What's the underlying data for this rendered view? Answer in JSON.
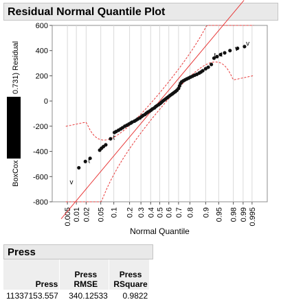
{
  "plot_panel": {
    "title": "Residual Normal Quantile Plot"
  },
  "press_panel": {
    "title": "Press",
    "columns": [
      "Press",
      "Press RMSE",
      "Press RSquare"
    ],
    "column_lines": [
      [
        "",
        "Press"
      ],
      [
        "",
        "Press RMSE"
      ],
      [
        "Press",
        "RSquare"
      ]
    ],
    "rows": [
      [
        "11337153.557",
        "340.12533",
        "0.9822"
      ]
    ]
  },
  "chart_data": {
    "type": "scatter",
    "title": "",
    "xlabel": "Normal Quantile",
    "ylabel_part1": "BoxCox",
    "ylabel_redacted": true,
    "ylabel_part2": "0.731) Residual",
    "x_scale": "probit",
    "xticks": [
      "0.005",
      "0.01",
      "0.02",
      "0.05",
      "0.1",
      "0.2",
      "0.3",
      "0.4",
      "0.5",
      "0.6",
      "0.7",
      "0.8",
      "0.9",
      "0.95",
      "0.98",
      "0.99",
      "0.995"
    ],
    "yticks": [
      600,
      400,
      200,
      0,
      -200,
      -400,
      -600,
      -800
    ],
    "ylim": [
      -800,
      600
    ],
    "grid": true,
    "fit_line": {
      "slope": 340,
      "intercept": 0,
      "color": "#e83a3a"
    },
    "confidence_band": {
      "color": "#e83a3a",
      "style": "dashed"
    },
    "point_color": "#111111",
    "label_color": "#000000",
    "labels": [
      {
        "text": "v",
        "quantile": 0.006,
        "y": -640
      },
      {
        "text": "t",
        "quantile": 0.023,
        "y": -470
      },
      {
        "text": "t",
        "quantile": 0.096,
        "y": -285
      },
      {
        "text": "t",
        "quantile": 0.935,
        "y": 365
      },
      {
        "text": "t",
        "quantile": 0.955,
        "y": 375
      },
      {
        "text": "v",
        "quantile": 0.982,
        "y": 420
      },
      {
        "text": "v",
        "quantile": 0.992,
        "y": 460
      }
    ],
    "points": [
      [
        0.012,
        -530
      ],
      [
        0.019,
        -480
      ],
      [
        0.026,
        -455
      ],
      [
        0.047,
        -390
      ],
      [
        0.052,
        -375
      ],
      [
        0.058,
        -362
      ],
      [
        0.066,
        -348
      ],
      [
        0.085,
        -300
      ],
      [
        0.103,
        -250
      ],
      [
        0.112,
        -242
      ],
      [
        0.125,
        -232
      ],
      [
        0.138,
        -222
      ],
      [
        0.15,
        -212
      ],
      [
        0.165,
        -200
      ],
      [
        0.18,
        -192
      ],
      [
        0.195,
        -183
      ],
      [
        0.21,
        -175
      ],
      [
        0.22,
        -168
      ],
      [
        0.24,
        -160
      ],
      [
        0.255,
        -152
      ],
      [
        0.27,
        -143
      ],
      [
        0.29,
        -135
      ],
      [
        0.305,
        -124
      ],
      [
        0.32,
        -115
      ],
      [
        0.34,
        -107
      ],
      [
        0.355,
        -97
      ],
      [
        0.37,
        -88
      ],
      [
        0.39,
        -80
      ],
      [
        0.405,
        -72
      ],
      [
        0.42,
        -63
      ],
      [
        0.44,
        -55
      ],
      [
        0.455,
        -45
      ],
      [
        0.47,
        -37
      ],
      [
        0.49,
        -28
      ],
      [
        0.505,
        -20
      ],
      [
        0.52,
        -10
      ],
      [
        0.535,
        0
      ],
      [
        0.55,
        8
      ],
      [
        0.565,
        16
      ],
      [
        0.58,
        25
      ],
      [
        0.595,
        33
      ],
      [
        0.61,
        42
      ],
      [
        0.625,
        50
      ],
      [
        0.64,
        58
      ],
      [
        0.655,
        67
      ],
      [
        0.67,
        75
      ],
      [
        0.685,
        86
      ],
      [
        0.7,
        100
      ],
      [
        0.71,
        120
      ],
      [
        0.72,
        140
      ],
      [
        0.73,
        152
      ],
      [
        0.745,
        160
      ],
      [
        0.76,
        168
      ],
      [
        0.775,
        175
      ],
      [
        0.79,
        182
      ],
      [
        0.805,
        190
      ],
      [
        0.82,
        197
      ],
      [
        0.835,
        205
      ],
      [
        0.85,
        212
      ],
      [
        0.865,
        222
      ],
      [
        0.875,
        230
      ],
      [
        0.885,
        240
      ],
      [
        0.9,
        256
      ],
      [
        0.912,
        268
      ],
      [
        0.925,
        290
      ],
      [
        0.935,
        340
      ],
      [
        0.945,
        352
      ],
      [
        0.955,
        368
      ],
      [
        0.965,
        382
      ],
      [
        0.975,
        400
      ],
      [
        0.985,
        418
      ],
      [
        0.991,
        432
      ]
    ]
  }
}
